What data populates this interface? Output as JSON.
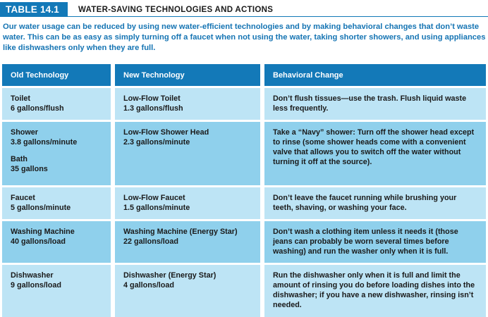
{
  "header": {
    "badge": "TABLE 14.1",
    "title": "WATER-SAVING TECHNOLOGIES AND ACTIONS"
  },
  "intro": "Our water usage can be reduced by using new water-efficient technologies and by making behavioral changes that don’t waste water. This can be as easy as simply turning off a faucet when not using the water, taking shorter showers, and using appliances like dishwashers only when they are full.",
  "columns": [
    "Old Technology",
    "New Technology",
    "Behavioral Change"
  ],
  "rows": [
    {
      "old": [
        "Toilet",
        "6 gallons/flush"
      ],
      "new": [
        "Low-Flow Toilet",
        "1.3 gallons/flush"
      ],
      "change": [
        "Don’t flush tissues—use the trash. Flush liquid waste",
        "less frequently."
      ]
    },
    {
      "old": [
        "Shower",
        "3.8 gallons/minute",
        "Bath",
        "35 gallons"
      ],
      "new": [
        "Low-Flow Shower Head",
        "2.3 gallons/minute"
      ],
      "change": [
        "Take a “Navy” shower: Turn off the shower head except",
        "to rinse (some shower heads come with a convenient",
        "valve that allows you to switch off the water without",
        "turning it off at the source)."
      ]
    },
    {
      "old": [
        "Faucet",
        "5 gallons/minute"
      ],
      "new": [
        "Low-Flow Faucet",
        "1.5 gallons/minute"
      ],
      "change": [
        "Don’t leave the faucet running while brushing your",
        "teeth, shaving, or washing your face."
      ]
    },
    {
      "old": [
        "Washing Machine",
        "40 gallons/load"
      ],
      "new": [
        "Washing Machine (Energy Star)",
        "22 gallons/load"
      ],
      "change": [
        "Don’t wash a clothing item unless it needs it (those",
        "jeans can probably be worn several times before",
        "washing) and run the washer only when it is full."
      ]
    },
    {
      "old": [
        "Dishwasher",
        "9 gallons/load"
      ],
      "new": [
        "Dishwasher (Energy Star)",
        "4 gallons/load"
      ],
      "change": [
        "Run the dishwasher only when it is full and limit the",
        "amount of rinsing you do before loading dishes into the",
        "dishwasher; if you have a new dishwasher, rinsing isn’t",
        "needed."
      ]
    }
  ]
}
